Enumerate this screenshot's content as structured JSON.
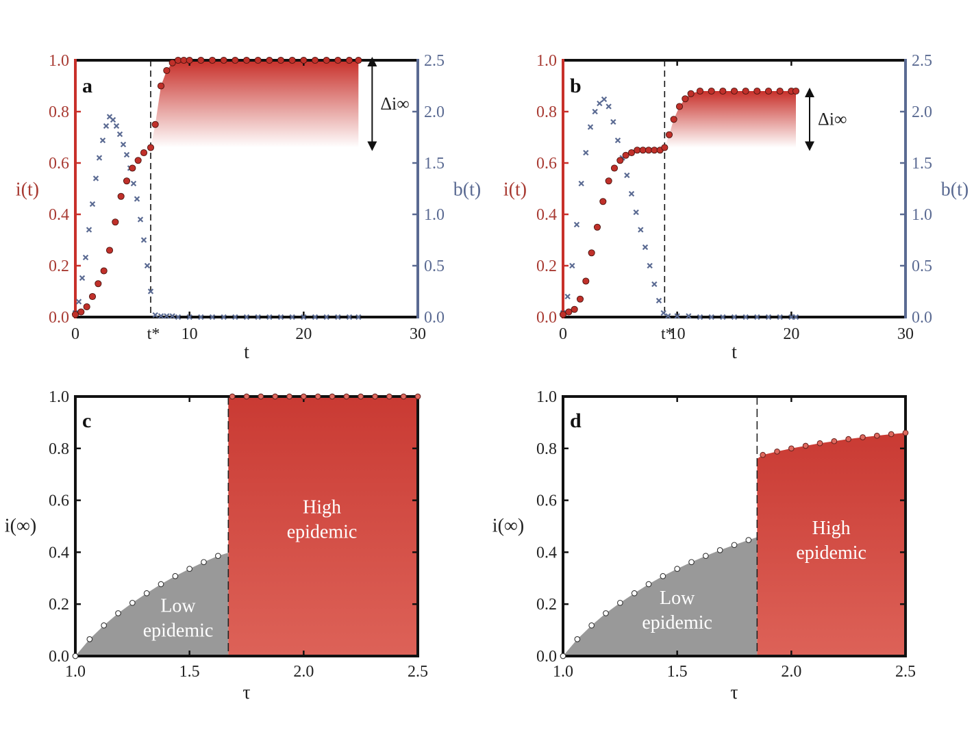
{
  "colors": {
    "red": "#c8302a",
    "red_dark": "#a83a32",
    "red_marker": "#c0302a",
    "blue": "#5a6a92",
    "grey_fill": "#999999",
    "black": "#111111"
  },
  "chart_data": [
    {
      "id": "a",
      "type": "scatter",
      "panel_label": "a",
      "xlabel": "t",
      "ylabel_left": "i(t)",
      "ylabel_right": "b(t)",
      "xlim": [
        0,
        30
      ],
      "ylim_left": [
        0,
        1
      ],
      "ylim_right": [
        0,
        2.5
      ],
      "xticks": [
        0,
        10,
        20,
        30
      ],
      "xtick_labels": [
        "0",
        "10",
        "20",
        "30"
      ],
      "yticks_left": [
        0.0,
        0.2,
        0.4,
        0.6,
        0.8,
        1.0
      ],
      "ytick_labels_left": [
        "0.0",
        "0.2",
        "0.4",
        "0.6",
        "0.8",
        "1.0"
      ],
      "yticks_right": [
        0.0,
        0.5,
        1.0,
        1.5,
        2.0,
        2.5
      ],
      "ytick_labels_right": [
        "0.0",
        "0.5",
        "1.0",
        "1.5",
        "2.0",
        "2.5"
      ],
      "t_star": 6.6,
      "t_star_label": "t*",
      "delta_label": "Δi∞",
      "delta_range": [
        0.66,
        1.0
      ],
      "gradient_region": {
        "x": [
          6.6,
          24.8
        ],
        "y": [
          0.66,
          1.0
        ]
      },
      "series": [
        {
          "name": "i(t)",
          "axis": "left",
          "marker": "circle",
          "x": [
            0.0,
            0.5,
            1.0,
            1.5,
            2.0,
            2.5,
            3.0,
            3.5,
            4.0,
            4.5,
            5.0,
            5.5,
            6.0,
            6.6,
            7.0,
            7.5,
            8.0,
            8.5,
            9.0,
            9.5,
            10.0,
            11.0,
            12.0,
            13.0,
            14.0,
            15.0,
            16.0,
            17.0,
            18.0,
            19.0,
            20.0,
            21.0,
            22.0,
            23.0,
            24.0,
            24.8
          ],
          "values": [
            0.01,
            0.02,
            0.04,
            0.08,
            0.13,
            0.18,
            0.26,
            0.37,
            0.47,
            0.53,
            0.58,
            0.61,
            0.64,
            0.66,
            0.75,
            0.9,
            0.96,
            0.99,
            1.0,
            1.0,
            1.0,
            1.0,
            1.0,
            1.0,
            1.0,
            1.0,
            1.0,
            1.0,
            1.0,
            1.0,
            1.0,
            1.0,
            1.0,
            1.0,
            1.0,
            1.0
          ]
        },
        {
          "name": "b(t)",
          "axis": "right",
          "marker": "x",
          "x": [
            0.0,
            0.3,
            0.6,
            0.9,
            1.2,
            1.5,
            1.8,
            2.1,
            2.4,
            2.7,
            3.0,
            3.3,
            3.6,
            3.9,
            4.2,
            4.5,
            4.8,
            5.1,
            5.4,
            5.7,
            6.0,
            6.3,
            6.6,
            7.0,
            7.5,
            8.0,
            8.5,
            9.0,
            10.0,
            11.0,
            12.0,
            13.0,
            14.0,
            15.0,
            16.0,
            17.0,
            18.0,
            19.0,
            20.0,
            21.0,
            22.0,
            23.0,
            24.0,
            24.8
          ],
          "values": [
            0.04,
            0.15,
            0.38,
            0.58,
            0.85,
            1.1,
            1.35,
            1.55,
            1.72,
            1.86,
            1.95,
            1.92,
            1.86,
            1.78,
            1.68,
            1.58,
            1.45,
            1.3,
            1.15,
            0.95,
            0.75,
            0.5,
            0.25,
            0.02,
            0.01,
            0.01,
            0.01,
            0.0,
            0.0,
            0.0,
            0.0,
            0.0,
            0.0,
            0.0,
            0.0,
            0.0,
            0.0,
            0.0,
            0.0,
            0.0,
            0.0,
            0.0,
            0.0,
            0.0
          ]
        }
      ]
    },
    {
      "id": "b",
      "type": "scatter",
      "panel_label": "b",
      "xlabel": "t",
      "ylabel_left": "i(t)",
      "ylabel_right": "b(t)",
      "xlim": [
        0,
        30
      ],
      "ylim_left": [
        0,
        1
      ],
      "ylim_right": [
        0,
        2.5
      ],
      "xticks": [
        0,
        10,
        20,
        30
      ],
      "xtick_labels": [
        "0",
        "10",
        "20",
        "30"
      ],
      "yticks_left": [
        0.0,
        0.2,
        0.4,
        0.6,
        0.8,
        1.0
      ],
      "ytick_labels_left": [
        "0.0",
        "0.2",
        "0.4",
        "0.6",
        "0.8",
        "1.0"
      ],
      "yticks_right": [
        0.0,
        0.5,
        1.0,
        1.5,
        2.0,
        2.5
      ],
      "ytick_labels_right": [
        "0.0",
        "0.5",
        "1.0",
        "1.5",
        "2.0",
        "2.5"
      ],
      "t_star": 8.9,
      "t_star_label": "t*",
      "delta_label": "Δi∞",
      "delta_range": [
        0.66,
        0.88
      ],
      "gradient_region": {
        "x": [
          8.9,
          20.4
        ],
        "y": [
          0.66,
          0.88
        ]
      },
      "series": [
        {
          "name": "i(t)",
          "axis": "left",
          "marker": "circle",
          "x": [
            0.0,
            0.5,
            1.0,
            1.5,
            2.0,
            2.5,
            3.0,
            3.5,
            4.0,
            4.5,
            5.0,
            5.5,
            6.0,
            6.5,
            7.0,
            7.5,
            8.0,
            8.5,
            8.9,
            9.3,
            9.7,
            10.2,
            10.7,
            11.2,
            12.0,
            13.0,
            14.0,
            15.0,
            16.0,
            17.0,
            18.0,
            19.0,
            20.0,
            20.4
          ],
          "values": [
            0.01,
            0.02,
            0.03,
            0.07,
            0.14,
            0.25,
            0.35,
            0.45,
            0.53,
            0.58,
            0.61,
            0.63,
            0.64,
            0.65,
            0.65,
            0.65,
            0.65,
            0.65,
            0.66,
            0.71,
            0.77,
            0.82,
            0.85,
            0.87,
            0.88,
            0.88,
            0.88,
            0.88,
            0.88,
            0.88,
            0.88,
            0.88,
            0.88,
            0.88
          ]
        },
        {
          "name": "b(t)",
          "axis": "right",
          "marker": "x",
          "x": [
            0.0,
            0.4,
            0.8,
            1.2,
            1.6,
            2.0,
            2.4,
            2.8,
            3.2,
            3.6,
            4.0,
            4.4,
            4.8,
            5.2,
            5.6,
            6.0,
            6.4,
            6.8,
            7.2,
            7.6,
            8.0,
            8.4,
            8.8,
            9.2,
            10.0,
            11.0,
            12.0,
            13.0,
            14.0,
            15.0,
            16.0,
            17.0,
            18.0,
            19.0,
            20.0,
            20.4
          ],
          "values": [
            0.04,
            0.2,
            0.5,
            0.9,
            1.3,
            1.6,
            1.85,
            2.0,
            2.08,
            2.12,
            2.05,
            1.9,
            1.72,
            1.55,
            1.38,
            1.2,
            1.02,
            0.85,
            0.68,
            0.5,
            0.32,
            0.16,
            0.04,
            0.01,
            0.01,
            0.01,
            0.0,
            0.0,
            0.0,
            0.0,
            0.0,
            0.0,
            0.0,
            0.0,
            0.0,
            0.0
          ]
        }
      ]
    },
    {
      "id": "c",
      "type": "area",
      "panel_label": "c",
      "xlabel": "τ",
      "ylabel": "i(∞)",
      "xlim": [
        1.0,
        2.5
      ],
      "ylim": [
        0,
        1
      ],
      "xticks": [
        1.0,
        1.5,
        2.0,
        2.5
      ],
      "xtick_labels": [
        "1.0",
        "1.5",
        "2.0",
        "2.5"
      ],
      "yticks": [
        0.0,
        0.2,
        0.4,
        0.6,
        0.8,
        1.0
      ],
      "ytick_labels": [
        "0.0",
        "0.2",
        "0.4",
        "0.6",
        "0.8",
        "1.0"
      ],
      "threshold": 1.67,
      "low_label": [
        "Low",
        "epidemic"
      ],
      "high_label": [
        "High",
        "epidemic"
      ],
      "low_curve": {
        "x": [
          1.0,
          1.0625,
          1.125,
          1.1875,
          1.25,
          1.3125,
          1.375,
          1.4375,
          1.5,
          1.5625,
          1.625,
          1.67
        ],
        "values": [
          0.0,
          0.065,
          0.118,
          0.165,
          0.205,
          0.242,
          0.277,
          0.308,
          0.336,
          0.362,
          0.386,
          0.398
        ]
      },
      "high_curve": {
        "x": [
          1.67,
          1.6875,
          1.75,
          1.8125,
          1.875,
          1.9375,
          2.0,
          2.0625,
          2.125,
          2.1875,
          2.25,
          2.3125,
          2.375,
          2.4375,
          2.5
        ],
        "values": [
          1.0,
          1.0,
          1.0,
          1.0,
          1.0,
          1.0,
          1.0,
          1.0,
          1.0,
          1.0,
          1.0,
          1.0,
          1.0,
          1.0,
          1.0
        ]
      }
    },
    {
      "id": "d",
      "type": "area",
      "panel_label": "d",
      "xlabel": "τ",
      "ylabel": "i(∞)",
      "xlim": [
        1.0,
        2.5
      ],
      "ylim": [
        0,
        1
      ],
      "xticks": [
        1.0,
        1.5,
        2.0,
        2.5
      ],
      "xtick_labels": [
        "1.0",
        "1.5",
        "2.0",
        "2.5"
      ],
      "yticks": [
        0.0,
        0.2,
        0.4,
        0.6,
        0.8,
        1.0
      ],
      "ytick_labels": [
        "0.0",
        "0.2",
        "0.4",
        "0.6",
        "0.8",
        "1.0"
      ],
      "threshold": 1.85,
      "low_label": [
        "Low",
        "epidemic"
      ],
      "high_label": [
        "High",
        "epidemic"
      ],
      "low_curve": {
        "x": [
          1.0,
          1.0625,
          1.125,
          1.1875,
          1.25,
          1.3125,
          1.375,
          1.4375,
          1.5,
          1.5625,
          1.625,
          1.6875,
          1.75,
          1.8125,
          1.85
        ],
        "values": [
          0.0,
          0.065,
          0.118,
          0.165,
          0.205,
          0.242,
          0.277,
          0.308,
          0.336,
          0.362,
          0.386,
          0.408,
          0.428,
          0.447,
          0.458
        ]
      },
      "high_curve": {
        "x": [
          1.85,
          1.875,
          1.9375,
          2.0,
          2.0625,
          2.125,
          2.1875,
          2.25,
          2.3125,
          2.375,
          2.4375,
          2.5
        ],
        "values": [
          0.76,
          0.775,
          0.788,
          0.8,
          0.81,
          0.82,
          0.828,
          0.836,
          0.843,
          0.849,
          0.855,
          0.86
        ]
      }
    }
  ]
}
